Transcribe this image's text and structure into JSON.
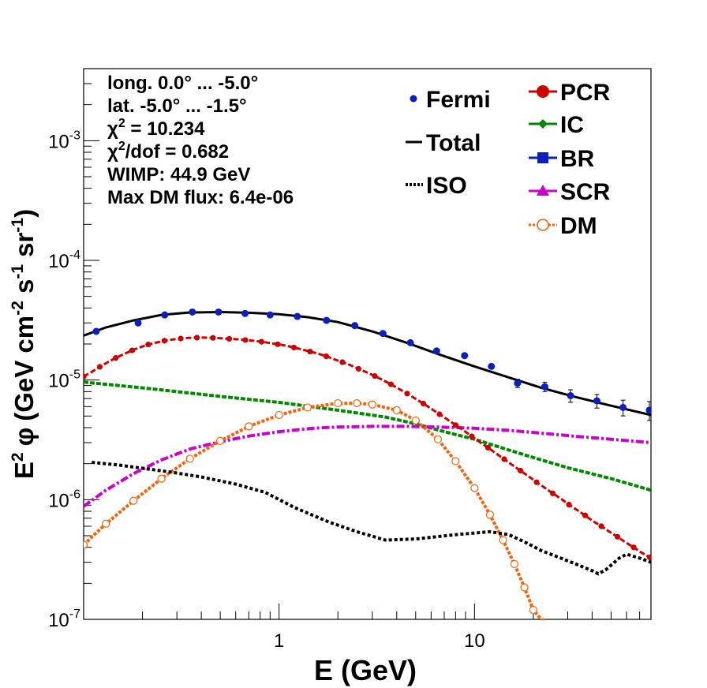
{
  "chart_data": {
    "type": "scatter",
    "title": "",
    "xlabel": "E (GeV)",
    "ylabel": {
      "prefix": "E",
      "prefix_sup": "2",
      "phi": "φ",
      "open": "(GeV cm",
      "sup1": "-2",
      "s": " s",
      "sup2": "-1",
      "sr": " sr",
      "sup3": "-1",
      "close": ")"
    },
    "xscale": "log",
    "yscale": "log",
    "xlim": [
      0.1,
      80
    ],
    "ylim": [
      1e-07,
      0.004
    ],
    "grid": false,
    "x_ticks": [
      {
        "v": 1,
        "label": "1"
      },
      {
        "v": 10,
        "label": "10"
      }
    ],
    "y_ticks": [
      {
        "v": 1e-07,
        "base": "10",
        "exp": "-7"
      },
      {
        "v": 1e-06,
        "base": "10",
        "exp": "-6"
      },
      {
        "v": 1e-05,
        "base": "10",
        "exp": "-5"
      },
      {
        "v": 0.0001,
        "base": "10",
        "exp": "-4"
      },
      {
        "v": 0.001,
        "base": "10",
        "exp": "-3"
      }
    ],
    "info": {
      "long": "long. 0.0° ... -5.0°",
      "lat": "lat. -5.0° ... -1.5°",
      "chi2_a": "χ",
      "chi2_sup": "2",
      "chi2_b": " = 10.234",
      "chidof_a": "χ",
      "chidof_sup": "2",
      "chidof_b": "/dof = 0.682",
      "wimp": "WIMP: 44.9 GeV",
      "maxdm": "Max DM flux: 6.4e-06"
    },
    "legend_placement": "top-right",
    "legend": [
      {
        "key": "fermi",
        "label": "Fermi"
      },
      {
        "key": "total",
        "label": "Total"
      },
      {
        "key": "iso",
        "label": "ISO"
      },
      {
        "key": "pcr",
        "label": "PCR"
      },
      {
        "key": "ic",
        "label": "IC"
      },
      {
        "key": "br",
        "label": "BR"
      },
      {
        "key": "scr",
        "label": "SCR"
      },
      {
        "key": "dm",
        "label": "DM"
      }
    ],
    "series": [
      {
        "key": "fermi",
        "name": "Fermi",
        "kind": "points",
        "color": "#0b1fbf",
        "x": [
          0.116,
          0.19,
          0.26,
          0.36,
          0.49,
          0.67,
          0.9,
          1.24,
          1.75,
          2.44,
          3.4,
          4.7,
          6.4,
          8.9,
          12.2,
          16.6,
          22.9,
          31.0,
          42.3,
          57.6,
          78.5
        ],
        "y": [
          2.55e-05,
          3e-05,
          3.5e-05,
          3.7e-05,
          3.7e-05,
          3.6e-05,
          3.5e-05,
          3.4e-05,
          3.15e-05,
          2.85e-05,
          2.45e-05,
          2.05e-05,
          1.75e-05,
          1.6e-05,
          1.3e-05,
          9.4e-06,
          8.8e-06,
          7.4e-06,
          6.7e-06,
          5.9e-06,
          5.6e-06
        ],
        "err": [
          0.03,
          0.03,
          0.03,
          0.03,
          0.03,
          0.03,
          0.03,
          0.03,
          0.03,
          0.03,
          0.03,
          0.03,
          0.04,
          0.05,
          0.07,
          0.08,
          0.09,
          0.12,
          0.13,
          0.15,
          0.18
        ]
      },
      {
        "key": "total",
        "name": "Total",
        "kind": "line",
        "color": "#000000",
        "x": [
          0.1,
          0.13,
          0.18,
          0.25,
          0.35,
          0.5,
          0.7,
          1.0,
          1.4,
          2.0,
          3.0,
          4.5,
          6.5,
          10,
          15,
          22,
          32,
          50,
          80
        ],
        "y": [
          2.35e-05,
          2.75e-05,
          3.15e-05,
          3.5e-05,
          3.67e-05,
          3.7e-05,
          3.65e-05,
          3.55e-05,
          3.35e-05,
          3.05e-05,
          2.55e-05,
          2.05e-05,
          1.65e-05,
          1.3e-05,
          1.05e-05,
          8.6e-06,
          7.3e-06,
          6.1e-06,
          5.1e-06
        ]
      },
      {
        "key": "iso",
        "name": "ISO",
        "kind": "dotted",
        "color": "#000000",
        "x": [
          0.11,
          0.15,
          0.2,
          0.28,
          0.4,
          0.6,
          0.85,
          1.2,
          1.8,
          2.5,
          3.5,
          5,
          8,
          12,
          15,
          18,
          22,
          27,
          33,
          40,
          43,
          47,
          55,
          60,
          70,
          80
        ],
        "y": [
          2.05e-06,
          1.95e-06,
          1.83e-06,
          1.7e-06,
          1.55e-06,
          1.35e-06,
          1.15e-06,
          8.6e-07,
          6.5e-07,
          5.4e-07,
          4.6e-07,
          4.7e-07,
          5.1e-07,
          5.4e-07,
          5.1e-07,
          4.45e-07,
          3.75e-07,
          3.3e-07,
          2.9e-07,
          2.55e-07,
          2.4e-07,
          2.6e-07,
          3.25e-07,
          3.5e-07,
          3.25e-07,
          3e-07
        ]
      },
      {
        "key": "pcr",
        "name": "PCR",
        "kind": "line-markers",
        "color": "#cc0000",
        "x": [
          0.1,
          0.11,
          0.121,
          0.133,
          0.146,
          0.161,
          0.177,
          0.195,
          0.214,
          0.236,
          0.259,
          0.285,
          0.314,
          0.345,
          0.38,
          0.418,
          0.459,
          0.505,
          0.556,
          0.611,
          0.672,
          0.74,
          0.813,
          0.895,
          0.984,
          1.083,
          1.191,
          1.31,
          1.441,
          1.585,
          1.744,
          1.918,
          2.11,
          2.321,
          2.553,
          2.808,
          3.089,
          3.398,
          3.738,
          4.112,
          4.523,
          4.975,
          5.473,
          6.02,
          6.622,
          7.285,
          8.013,
          8.815,
          9.696,
          10.666,
          11.733,
          12.906,
          14.197,
          15.616,
          17.178,
          18.896,
          20.785,
          22.864,
          25.15,
          27.666,
          30.432,
          33.475,
          36.823,
          40.505,
          44.556,
          49.011,
          53.912,
          59.304,
          65.234,
          71.757,
          78.933
        ],
        "y": [
          1.07e-05,
          1.17e-05,
          1.29e-05,
          1.41e-05,
          1.53e-05,
          1.65e-05,
          1.77e-05,
          1.88e-05,
          1.98e-05,
          2.06e-05,
          2.13e-05,
          2.18e-05,
          2.22e-05,
          2.25e-05,
          2.26e-05,
          2.26e-05,
          2.25e-05,
          2.23e-05,
          2.21e-05,
          2.19e-05,
          2.16e-05,
          2.13e-05,
          2.09e-05,
          2.04e-05,
          1.99e-05,
          1.94e-05,
          1.87e-05,
          1.8e-05,
          1.73e-05,
          1.66e-05,
          1.58e-05,
          1.49e-05,
          1.41e-05,
          1.33e-05,
          1.24e-05,
          1.16e-05,
          1.08e-05,
          1e-05,
          9.21e-06,
          8.43e-06,
          7.71e-06,
          7.01e-06,
          6.36e-06,
          5.75e-06,
          5.18e-06,
          4.67e-06,
          4.2e-06,
          3.78e-06,
          3.38e-06,
          3.02e-06,
          2.72e-06,
          2.43e-06,
          2.18e-06,
          1.95e-06,
          1.75e-06,
          1.57e-06,
          1.4e-06,
          1.26e-06,
          1.13e-06,
          1.02e-06,
          9.1e-07,
          8.2e-07,
          7.4e-07,
          6.6e-07,
          6e-07,
          5.4e-07,
          4.9e-07,
          4.4e-07,
          4e-07,
          3.6e-07,
          3.3e-07
        ],
        "marker_every": 2
      },
      {
        "key": "ic",
        "name": "IC",
        "kind": "dash-markers",
        "color": "#008800",
        "x": [
          0.1,
          0.2,
          0.5,
          1.0,
          2.0,
          3.5,
          5.0,
          7.0,
          10,
          15,
          20,
          30,
          50,
          80
        ],
        "y": [
          9.6e-06,
          8.6e-06,
          7.3e-06,
          6.5e-06,
          5.6e-06,
          4.9e-06,
          4.3e-06,
          3.7e-06,
          3.2e-06,
          2.6e-06,
          2.25e-06,
          1.85e-06,
          1.5e-06,
          1.2e-06
        ]
      },
      {
        "key": "scr",
        "name": "SCR",
        "kind": "dashdot",
        "color": "#cc00cc",
        "x": [
          0.1,
          0.13,
          0.18,
          0.25,
          0.35,
          0.5,
          0.7,
          1.0,
          1.5,
          2.0,
          3.0,
          4.5,
          6.5,
          10,
          15,
          22,
          32,
          50,
          80
        ],
        "y": [
          8.8e-07,
          1.2e-06,
          1.65e-06,
          2.15e-06,
          2.65e-06,
          3.05e-06,
          3.4e-06,
          3.7e-06,
          3.95e-06,
          4.05e-06,
          4.1e-06,
          4.1e-06,
          4.05e-06,
          3.95e-06,
          3.8e-06,
          3.6e-06,
          3.4e-06,
          3.2e-06,
          3e-06
        ]
      },
      {
        "key": "dm",
        "name": "DM",
        "kind": "dotted-markers",
        "color": "#ee6611",
        "x": [
          0.1,
          0.13,
          0.18,
          0.25,
          0.35,
          0.5,
          0.7,
          1.0,
          1.4,
          2.0,
          2.5,
          3.0,
          4.0,
          5.0,
          6.5,
          8.0,
          10,
          12,
          14,
          16,
          18,
          20,
          22.5
        ],
        "y": [
          4.2e-07,
          6.3e-07,
          9.8e-07,
          1.5e-06,
          2.2e-06,
          3.1e-06,
          4.1e-06,
          5.1e-06,
          5.9e-06,
          6.4e-06,
          6.4e-06,
          6.25e-06,
          5.6e-06,
          4.6e-06,
          3.2e-06,
          2.1e-06,
          1.25e-06,
          7.5e-07,
          4.6e-07,
          2.9e-07,
          1.85e-07,
          1.2e-07,
          9.5e-08
        ],
        "marker_every": 1
      }
    ]
  }
}
